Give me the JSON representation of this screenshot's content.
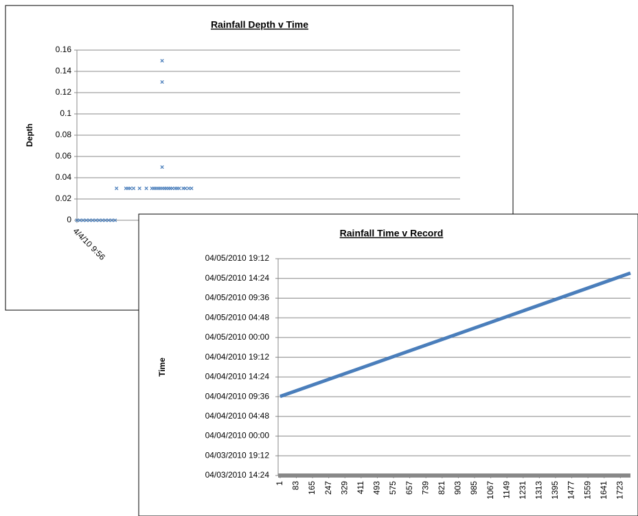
{
  "chart_data": [
    {
      "type": "scatter",
      "title": "Rainfall Depth v Time",
      "y_label": "Depth",
      "color": "#4a7ebb",
      "grid": true,
      "x": [
        1,
        15,
        30,
        45,
        60,
        75,
        90,
        105,
        120,
        135,
        150,
        165,
        180,
        187,
        231,
        241,
        251,
        267,
        295,
        327,
        353,
        363,
        372,
        382,
        391,
        401,
        401,
        401,
        401,
        411,
        420,
        430,
        439,
        449,
        462,
        471,
        481,
        500,
        510,
        526,
        539
      ],
      "values": [
        0,
        0,
        0,
        0,
        0,
        0,
        0,
        0,
        0,
        0,
        0,
        0,
        0,
        0.03,
        0.03,
        0.03,
        0.03,
        0.03,
        0.03,
        0.03,
        0.03,
        0.03,
        0.03,
        0.03,
        0.03,
        0.03,
        0.05,
        0.13,
        0.15,
        0.03,
        0.03,
        0.03,
        0.03,
        0.03,
        0.03,
        0.03,
        0.03,
        0.03,
        0.03,
        0.03,
        0.03
      ],
      "xlim": [
        1,
        1800
      ],
      "xticks": [
        {
          "value": 1,
          "label": "4/4/10 9:56"
        }
      ],
      "ylim": [
        0,
        0.16
      ],
      "yticks": [
        0,
        0.02,
        0.04,
        0.06,
        0.08,
        0.1,
        0.12,
        0.14,
        0.16
      ]
    },
    {
      "type": "line",
      "title": "Rainfall Time v Record",
      "y_label": "Time",
      "color": "#4a7ebb",
      "grid": true,
      "x": [
        1,
        1774
      ],
      "values": [
        33.65,
        63.7
      ],
      "xlim": [
        -9,
        1774
      ],
      "xticks": [
        1,
        83,
        165,
        247,
        329,
        411,
        493,
        575,
        657,
        739,
        821,
        903,
        985,
        1067,
        1149,
        1231,
        1313,
        1395,
        1477,
        1559,
        1641,
        1723
      ],
      "ylim": [
        14.4,
        67.2
      ],
      "yticks": [
        {
          "value": 14.4,
          "label": "04/03/2010 14:24"
        },
        {
          "value": 19.2,
          "label": "04/03/2010 19:12"
        },
        {
          "value": 24,
          "label": "04/04/2010 00:00"
        },
        {
          "value": 28.8,
          "label": "04/04/2010 04:48"
        },
        {
          "value": 33.6,
          "label": "04/04/2010 09:36"
        },
        {
          "value": 38.4,
          "label": "04/04/2010 14:24"
        },
        {
          "value": 43.2,
          "label": "04/04/2010 19:12"
        },
        {
          "value": 48,
          "label": "04/05/2010 00:00"
        },
        {
          "value": 52.8,
          "label": "04/05/2010 04:48"
        },
        {
          "value": 57.6,
          "label": "04/05/2010 09:36"
        },
        {
          "value": 62.4,
          "label": "04/05/2010 14:24"
        },
        {
          "value": 67.2,
          "label": "04/05/2010 19:12"
        }
      ]
    }
  ]
}
